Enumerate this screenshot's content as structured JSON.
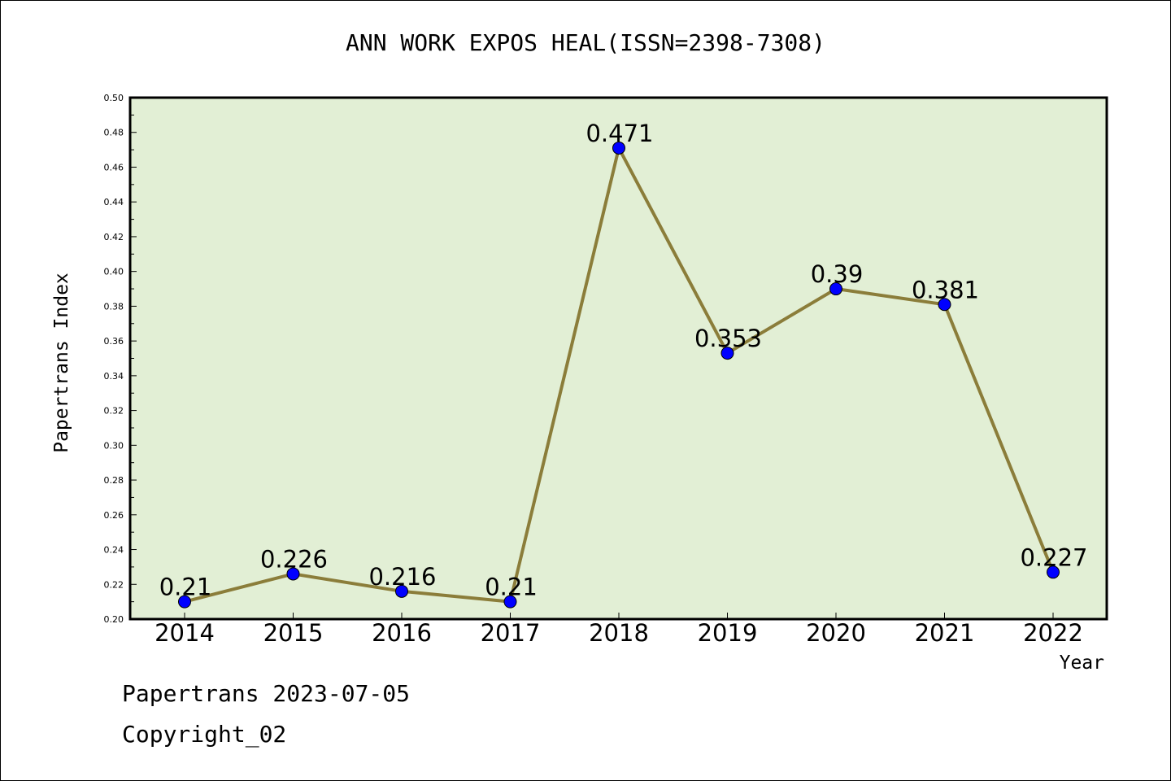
{
  "chart_data": {
    "type": "line",
    "title": "ANN WORK EXPOS HEAL(ISSN=2398-7308)",
    "xlabel": "Year",
    "ylabel": "Papertrans Index",
    "categories": [
      "2014",
      "2015",
      "2016",
      "2017",
      "2018",
      "2019",
      "2020",
      "2021",
      "2022"
    ],
    "series": [
      {
        "values": [
          0.21,
          0.226,
          0.216,
          0.21,
          0.471,
          0.353,
          0.39,
          0.381,
          0.227
        ],
        "labels": [
          "0.21",
          "0.226",
          "0.216",
          "0.21",
          "0.471",
          "0.353",
          "0.39",
          "0.381",
          "0.227"
        ]
      }
    ],
    "ylim": [
      0.2,
      0.5
    ],
    "yticks": [
      "0.20",
      "0.22",
      "0.24",
      "0.26",
      "0.28",
      "0.30",
      "0.32",
      "0.34",
      "0.36",
      "0.38",
      "0.40",
      "0.42",
      "0.44",
      "0.46",
      "0.48",
      "0.50"
    ],
    "grid": false,
    "legend": "none",
    "colors": {
      "plot_background": "#e2efd5",
      "line": "#8b7d3a",
      "marker": "#0000ff"
    }
  },
  "footer": {
    "line1": "Papertrans 2023-07-05",
    "line2": "Copyright_02"
  }
}
